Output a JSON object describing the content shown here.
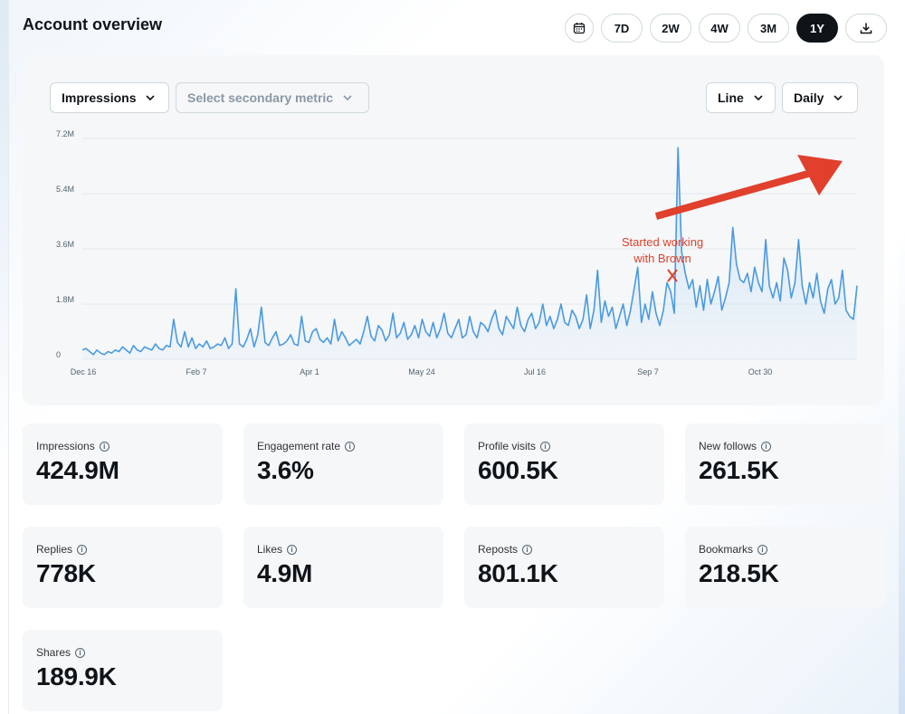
{
  "header": {
    "title": "Account overview",
    "ranges": [
      "7D",
      "2W",
      "4W",
      "3M",
      "1Y"
    ],
    "active_range": "1Y",
    "calendar_icon": "calendar-icon",
    "download_icon": "download-icon"
  },
  "controls": {
    "primary_metric": "Impressions",
    "secondary_metric_placeholder": "Select secondary metric",
    "chart_type": "Line",
    "granularity": "Daily"
  },
  "annotation": {
    "line1": "Started working",
    "line2": "with Brown",
    "color": "#e0402c"
  },
  "chart_data": {
    "type": "area",
    "ylabel": "",
    "xlabel": "",
    "y_ticks": [
      "0",
      "1.8M",
      "3.6M",
      "5.4M",
      "7.2M"
    ],
    "ylim": [
      0,
      7200000
    ],
    "x_ticks": [
      "Dec 16",
      "Feb 7",
      "Apr 1",
      "May 24",
      "Jul 16",
      "Sep 7",
      "Oct 30"
    ],
    "line_color": "#4a9ae0",
    "fill_color": "#cfe3f7",
    "series": [
      {
        "values": [
          300000,
          350000,
          250000,
          150000,
          300000,
          200000,
          150000,
          250000,
          200000,
          300000,
          250000,
          400000,
          300000,
          200000,
          450000,
          300000,
          250000,
          400000,
          350000,
          300000,
          500000,
          350000,
          300000,
          450000,
          400000,
          1300000,
          550000,
          400000,
          900000,
          400000,
          700000,
          350000,
          500000,
          400000,
          600000,
          350000,
          400000,
          500000,
          450000,
          700000,
          350000,
          500000,
          2300000,
          500000,
          400000,
          650000,
          1000000,
          400000,
          800000,
          1700000,
          550000,
          450000,
          700000,
          900000,
          450000,
          500000,
          600000,
          800000,
          500000,
          450000,
          1400000,
          600000,
          550000,
          900000,
          1000000,
          650000,
          550000,
          700000,
          500000,
          1300000,
          600000,
          900000,
          700000,
          450000,
          550000,
          650000,
          500000,
          900000,
          1400000,
          750000,
          600000,
          1100000,
          950000,
          600000,
          800000,
          1500000,
          700000,
          850000,
          1200000,
          650000,
          800000,
          1100000,
          700000,
          1300000,
          900000,
          750000,
          1200000,
          700000,
          1000000,
          1500000,
          850000,
          700000,
          1000000,
          1300000,
          700000,
          800000,
          1400000,
          900000,
          700000,
          1200000,
          1100000,
          900000,
          1300000,
          1600000,
          1000000,
          800000,
          1400000,
          1200000,
          1000000,
          1700000,
          1100000,
          900000,
          1300000,
          1500000,
          1000000,
          1200000,
          1800000,
          1100000,
          1400000,
          1000000,
          1300000,
          1800000,
          1200000,
          1100000,
          1600000,
          1400000,
          1000000,
          1300000,
          2100000,
          1000000,
          1600000,
          2900000,
          1200000,
          1900000,
          1400000,
          1700000,
          1000000,
          1400000,
          1800000,
          1100000,
          1600000,
          2300000,
          3000000,
          1200000,
          1800000,
          1300000,
          2200000,
          1500000,
          1100000,
          1600000,
          2500000,
          2200000,
          1500000,
          6900000,
          3500000,
          2800000,
          2300000,
          2600000,
          1700000,
          2400000,
          1600000,
          2600000,
          1800000,
          2200000,
          2700000,
          1600000,
          2000000,
          2500000,
          4300000,
          3100000,
          2600000,
          2500000,
          2800000,
          2200000,
          3000000,
          2500000,
          2200000,
          3900000,
          2400000,
          2000000,
          2500000,
          1900000,
          3300000,
          2900000,
          2000000,
          2500000,
          3900000,
          2400000,
          1800000,
          2500000,
          2000000,
          2800000,
          1900000,
          1500000,
          2300000,
          2600000,
          1800000,
          2000000,
          2900000,
          1600000,
          1400000,
          1300000,
          2400000
        ]
      }
    ],
    "legend": "none",
    "grid": true
  },
  "stats": [
    {
      "label": "Impressions",
      "value": "424.9M"
    },
    {
      "label": "Engagement rate",
      "value": "3.6%"
    },
    {
      "label": "Profile visits",
      "value": "600.5K"
    },
    {
      "label": "New follows",
      "value": "261.5K"
    },
    {
      "label": "Replies",
      "value": "778K"
    },
    {
      "label": "Likes",
      "value": "4.9M"
    },
    {
      "label": "Reposts",
      "value": "801.1K"
    },
    {
      "label": "Bookmarks",
      "value": "218.5K"
    },
    {
      "label": "Shares",
      "value": "189.9K"
    }
  ]
}
